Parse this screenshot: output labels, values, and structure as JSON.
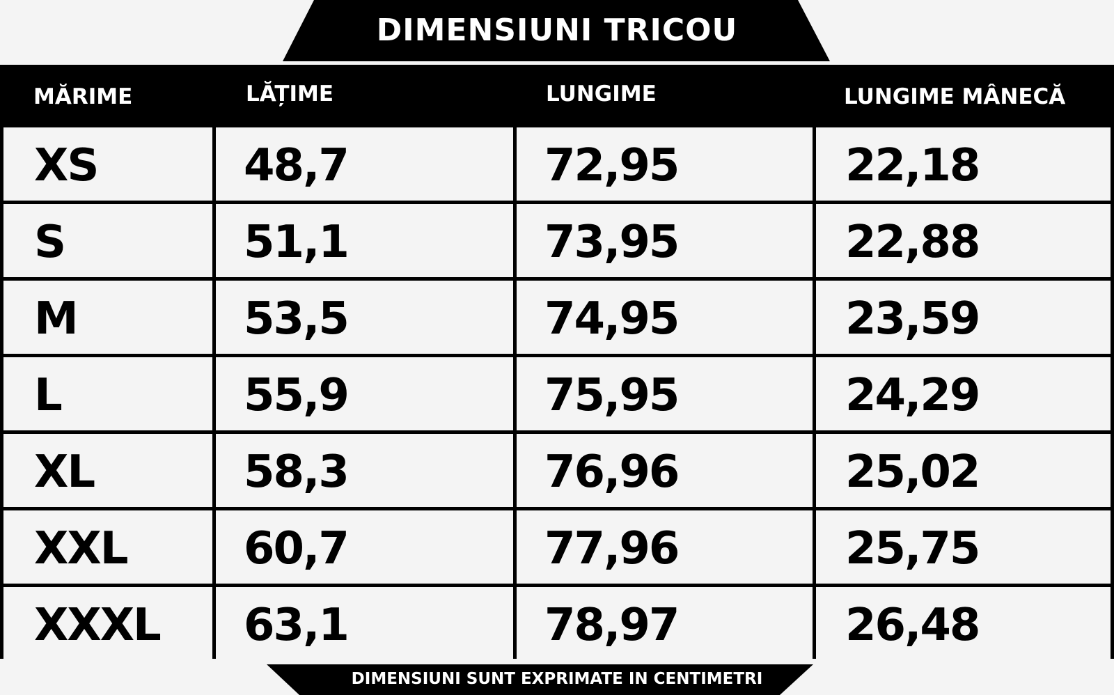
{
  "title": "DIMENSIUNI TRICOU",
  "headers": [
    "MĂRIME",
    "LĂȚIME",
    "LUNGIME",
    "LUNGIME MÂNECĂ"
  ],
  "rows": [
    [
      "XS",
      "48,7",
      "72,95",
      "22,18"
    ],
    [
      "S",
      "51,1",
      "73,95",
      "22,88"
    ],
    [
      "M",
      "53,5",
      "74,95",
      "23,59"
    ],
    [
      "L",
      "55,9",
      "75,95",
      "24,29"
    ],
    [
      "XL",
      "58,3",
      "76,96",
      "25,02"
    ],
    [
      "XXL",
      "60,7",
      "77,96",
      "25,75"
    ],
    [
      "XXXL",
      "63,1",
      "78,97",
      "26,48"
    ]
  ],
  "footer": "DIMENSIUNI SUNT EXPRIMATE IN CENTIMETRI",
  "colors": {
    "background": "#f4f4f4",
    "ink": "#000000",
    "header_text": "#ffffff"
  }
}
